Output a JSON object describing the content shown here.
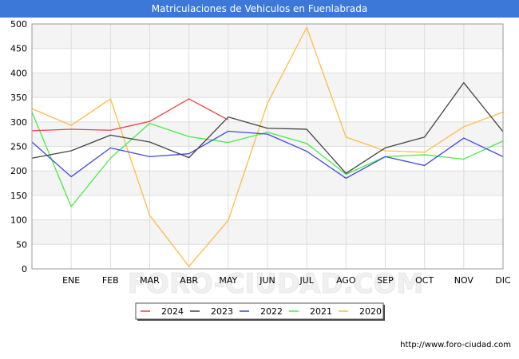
{
  "title": "Matriculaciones de Vehiculos en Fuenlabrada",
  "footer_url": "http://www.foro-ciudad.com",
  "watermark": "FORO-CIUDAD.COM",
  "chart_data": {
    "type": "line",
    "title": "Matriculaciones de Vehiculos en Fuenlabrada",
    "xlabel": "",
    "ylabel": "",
    "categories": [
      "",
      "ENE",
      "FEB",
      "MAR",
      "ABR",
      "MAY",
      "JUN",
      "JUL",
      "AGO",
      "SEP",
      "OCT",
      "NOV",
      "DIC"
    ],
    "ylim": [
      0,
      500
    ],
    "yticks": [
      0,
      50,
      100,
      150,
      200,
      250,
      300,
      350,
      400,
      450,
      500
    ],
    "grid": true,
    "legend_position": "bottom-center",
    "series": [
      {
        "name": "2024",
        "color": "#ee4444",
        "values": [
          282,
          285,
          283,
          301,
          347,
          304,
          null,
          null,
          null,
          null,
          null,
          null,
          null
        ]
      },
      {
        "name": "2023",
        "color": "#444444",
        "values": [
          226,
          241,
          273,
          259,
          227,
          310,
          287,
          285,
          195,
          247,
          269,
          380,
          280
        ]
      },
      {
        "name": "2022",
        "color": "#4444ee",
        "values": [
          259,
          188,
          247,
          229,
          235,
          281,
          275,
          240,
          185,
          229,
          211,
          267,
          229
        ]
      },
      {
        "name": "2021",
        "color": "#44ee44",
        "values": [
          320,
          127,
          226,
          297,
          270,
          258,
          279,
          256,
          193,
          229,
          233,
          224,
          261
        ]
      },
      {
        "name": "2020",
        "color": "#ffbb44",
        "values": [
          327,
          293,
          347,
          109,
          5,
          99,
          338,
          493,
          269,
          241,
          238,
          290,
          320
        ]
      }
    ]
  }
}
